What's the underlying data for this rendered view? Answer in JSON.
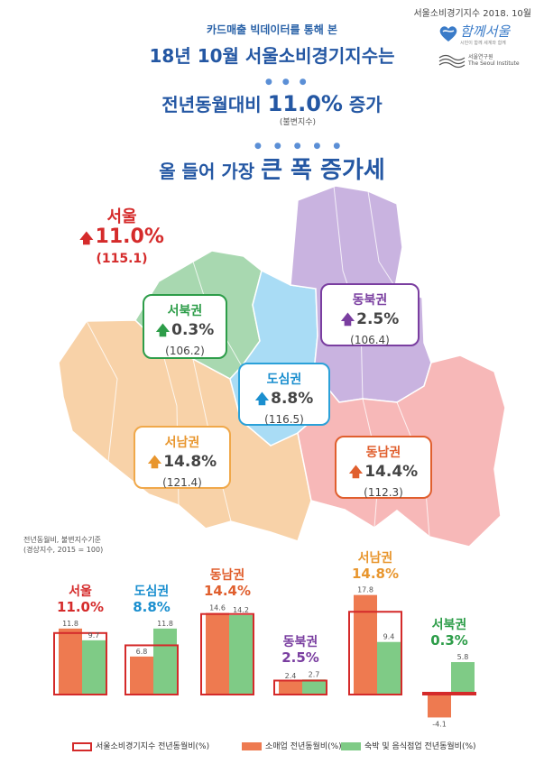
{
  "header": {
    "date_line": "서울소비경기지수 2018. 10월",
    "logo_hamkke": "함께서울",
    "logo_hamkke_sub": "시민이 함께 세계와 함께",
    "logo_institute_kr": "서울연구원",
    "logo_institute_en": "The Seoul Institute"
  },
  "titles": {
    "subtitle": "카드매출 빅데이터를 통해 본",
    "line1": "18년 10월 서울소비경기지수는",
    "line2_prefix": "전년동월대비 ",
    "line2_value": "11.0%",
    "line2_suffix": " 증가",
    "line2_note": "(불변지수)",
    "line3_prefix": "올 들어 가장 ",
    "line3_big": "큰 폭 증가세"
  },
  "seoul": {
    "label": "서울",
    "value": "11.0%",
    "index": "(115.1)"
  },
  "regions": {
    "northwest": {
      "name": "서북권",
      "value": "0.3%",
      "index": "(106.2)"
    },
    "northeast": {
      "name": "동북권",
      "value": "2.5%",
      "index": "(106.4)"
    },
    "center": {
      "name": "도심권",
      "value": "8.8%",
      "index": "(116.5)"
    },
    "southwest": {
      "name": "서남권",
      "value": "14.8%",
      "index": "(121.4)"
    },
    "southeast": {
      "name": "동남권",
      "value": "14.4%",
      "index": "(112.3)"
    }
  },
  "colors": {
    "northwest": "#a8d8b0",
    "northeast": "#c9b3e0",
    "center": "#a9dcf5",
    "southwest": "#f8d2a8",
    "southeast": "#f7b8b8",
    "retail": "#ee7a50",
    "lodging": "#7fcb86",
    "index_outline": "#d42a2a",
    "up_red": "#d52b2b",
    "up_green": "#2d9d49"
  },
  "chart_notes": {
    "line1": "전년동월비, 불변지수기준",
    "line2": "(경상지수, 2015 = 100)"
  },
  "chart_data": {
    "type": "bar",
    "categories": [
      "서울",
      "도심권",
      "동남권",
      "동북권",
      "서남권",
      "서북권"
    ],
    "category_headline": [
      "11.0%",
      "8.8%",
      "14.4%",
      "2.5%",
      "14.8%",
      "0.3%"
    ],
    "series": [
      {
        "name": "서울소비경기지수 전년동월비(%)",
        "values": [
          11.0,
          8.8,
          14.4,
          2.5,
          14.8,
          0.3
        ]
      },
      {
        "name": "소매업 전년동월비(%)",
        "values": [
          11.8,
          6.8,
          14.6,
          2.4,
          17.8,
          -4.1
        ]
      },
      {
        "name": "숙박 및 음식점업 전년동월비(%)",
        "values": [
          9.7,
          11.8,
          14.2,
          2.7,
          9.4,
          5.8
        ]
      }
    ],
    "bar_labels": {
      "retail": [
        "11.8",
        "6.8",
        "14.6",
        "2.4",
        "17.8",
        "-4.1"
      ],
      "lodging": [
        "9.7",
        "11.8",
        "14.2",
        "2.7",
        "9.4",
        "5.8"
      ]
    },
    "ylim": [
      -5,
      19
    ]
  }
}
